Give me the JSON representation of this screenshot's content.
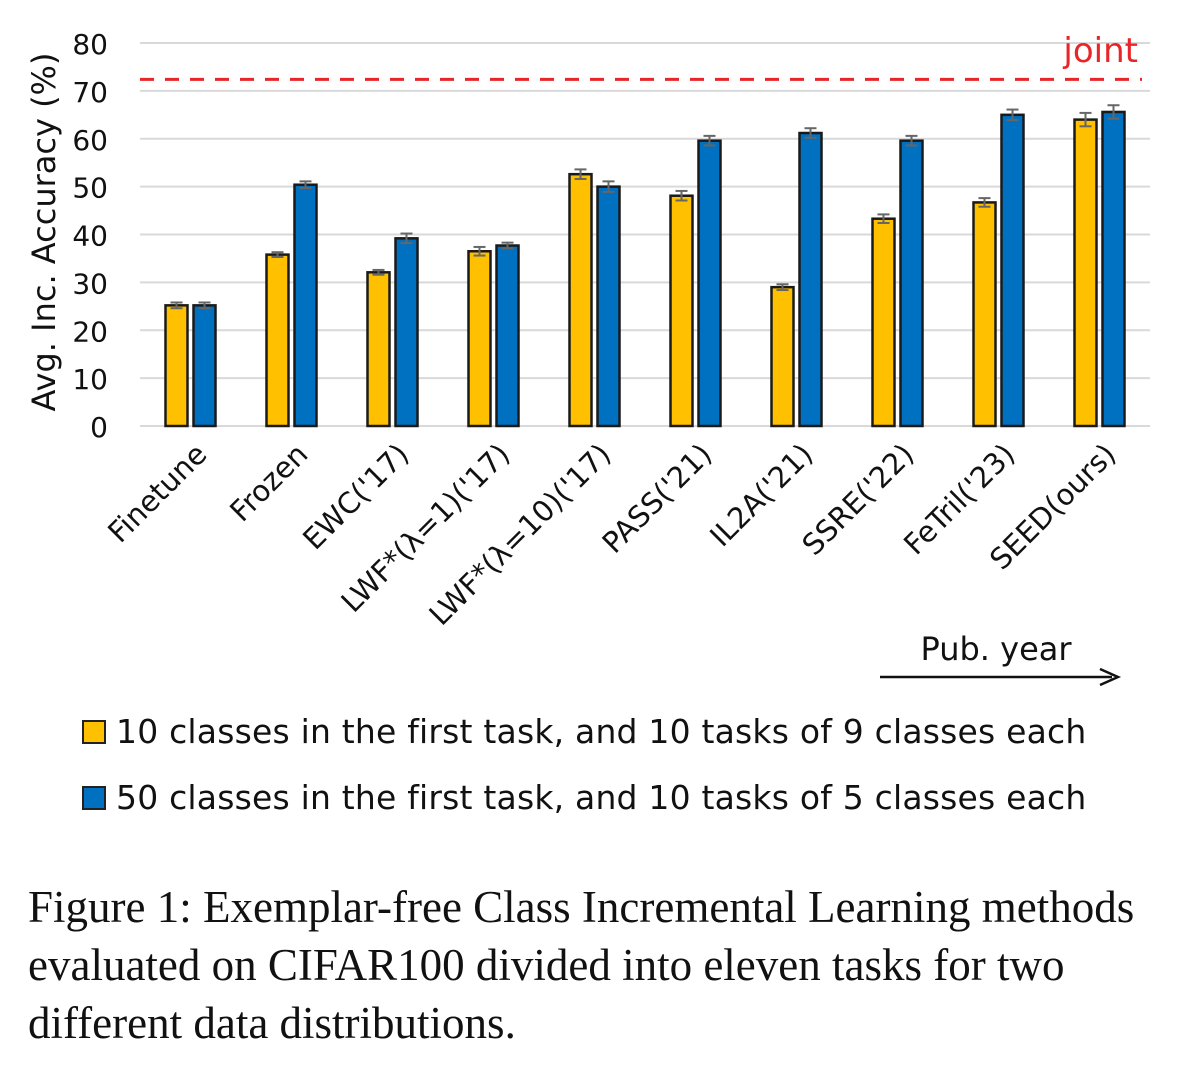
{
  "chart_data": {
    "type": "bar",
    "ylabel": "Avg. Inc. Accuracy (%)",
    "ylim": [
      0,
      80
    ],
    "yticks": [
      "0",
      "10",
      "20",
      "30",
      "40",
      "50",
      "60",
      "70",
      "80"
    ],
    "grid": true,
    "categories": [
      "Finetune",
      "Frozen",
      "EWC('17)",
      "LWF*(λ=1)('17)",
      "LWF*(λ=10)('17)",
      "PASS('21)",
      "IL2A('21)",
      "SSRE('22)",
      "FeTril('23)",
      "SEED(ours)"
    ],
    "series": [
      {
        "name": "10 classes in the first task, and 10 tasks of 9 classes each",
        "color": "#FFC000",
        "values": [
          25.2,
          35.8,
          32.1,
          36.5,
          52.6,
          48.1,
          29.0,
          43.3,
          46.7,
          64.0
        ],
        "errors": [
          0.6,
          0.5,
          0.5,
          0.9,
          1.0,
          1.0,
          0.6,
          0.9,
          0.9,
          1.4
        ]
      },
      {
        "name": "50 classes in the first task, and 10 tasks of 5 classes each",
        "color": "#0070C0",
        "values": [
          25.2,
          50.4,
          39.2,
          37.7,
          50.0,
          59.6,
          61.2,
          59.6,
          65.0,
          65.6
        ],
        "errors": [
          0.6,
          0.7,
          1.0,
          0.6,
          1.1,
          1.0,
          1.0,
          1.0,
          1.1,
          1.4
        ]
      }
    ],
    "reference_line": {
      "label": "joint",
      "value": 72.4,
      "color": "#E8262A"
    },
    "arrow_label": "Pub. year",
    "legend_position": "bottom-left"
  },
  "caption": "Figure 1: Exemplar-free Class Incremental Learning methods evaluated on CIFAR100 divided into eleven tasks for two different data distributions."
}
